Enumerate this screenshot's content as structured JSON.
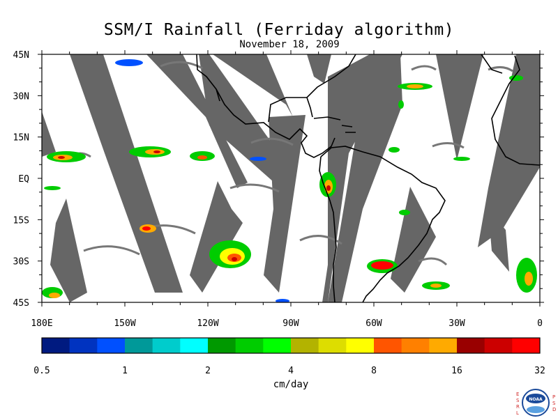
{
  "title": "SSM/I Rainfall (Ferriday algorithm)",
  "subtitle": "November 18, 2009",
  "map": {
    "lon_range": [
      -180,
      0
    ],
    "lat_range": [
      -45,
      45
    ],
    "lat_labels": [
      {
        "lat": 45,
        "text": "45N"
      },
      {
        "lat": 30,
        "text": "30N"
      },
      {
        "lat": 15,
        "text": "15N"
      },
      {
        "lat": 0,
        "text": "EQ"
      },
      {
        "lat": -15,
        "text": "15S"
      },
      {
        "lat": -30,
        "text": "30S"
      },
      {
        "lat": -45,
        "text": "45S"
      }
    ],
    "lon_labels": [
      {
        "lon": -180,
        "text": "180E"
      },
      {
        "lon": -150,
        "text": "150W"
      },
      {
        "lon": -120,
        "text": "120W"
      },
      {
        "lon": -90,
        "text": "90W"
      },
      {
        "lon": -60,
        "text": "60W"
      },
      {
        "lon": -30,
        "text": "30W"
      },
      {
        "lon": 0,
        "text": "0"
      }
    ],
    "missing_data_color": "#666666"
  },
  "colorbar": {
    "unit": "cm/day",
    "tick_labels": [
      "0.5",
      "1",
      "2",
      "4",
      "8",
      "16",
      "32"
    ],
    "colors": [
      "#001a80",
      "#0033c0",
      "#0050ff",
      "#009999",
      "#00cccc",
      "#00ffff",
      "#009900",
      "#00cc00",
      "#00ff00",
      "#b3b300",
      "#dddd00",
      "#ffff00",
      "#ff5500",
      "#ff8000",
      "#ffaa00",
      "#990000",
      "#cc0000",
      "#ff0000"
    ]
  },
  "logo": {
    "left_letters": [
      "E",
      "S",
      "R",
      "L"
    ],
    "right_letters": [
      "P",
      "S",
      "D"
    ],
    "center": "NOAA"
  }
}
